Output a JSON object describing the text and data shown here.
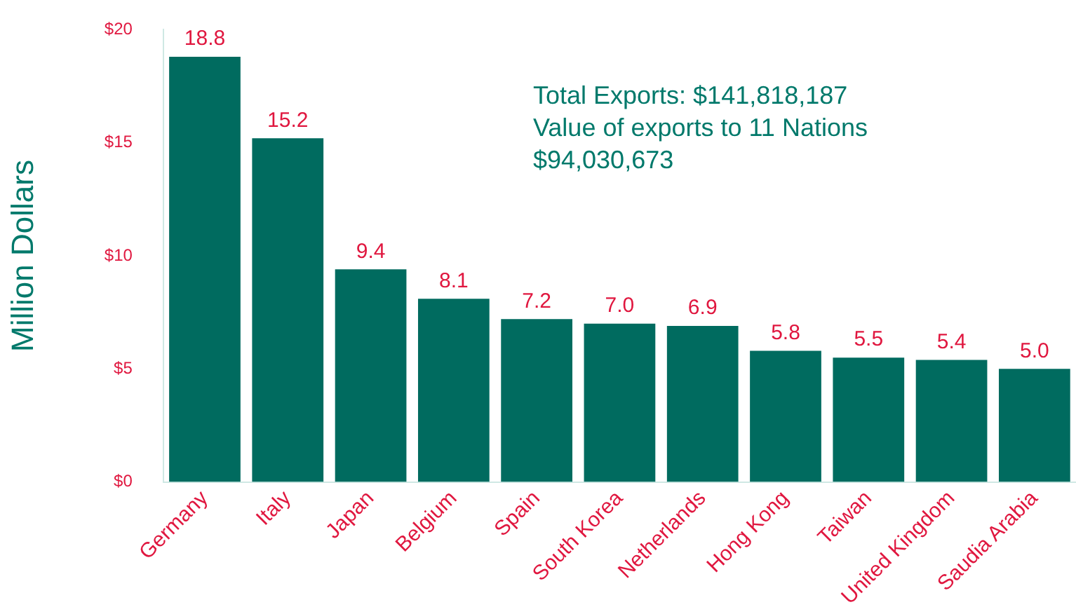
{
  "chart_data": {
    "type": "bar",
    "ylabel": "Million Dollars",
    "categories": [
      "Germany",
      "Italy",
      "Japan",
      "Belgium",
      "Spain",
      "South Korea",
      "Netherlands",
      "Hong Kong",
      "Taiwan",
      "United Kingdom",
      "Saudia Arabia"
    ],
    "values": [
      18.8,
      15.2,
      9.4,
      8.1,
      7.2,
      7.0,
      6.9,
      5.8,
      5.5,
      5.4,
      5.0
    ],
    "value_labels": [
      "18.8",
      "15.2",
      "9.4",
      "8.1",
      "7.2",
      "7.0",
      "6.9",
      "5.8",
      "5.5",
      "5.4",
      "5.0"
    ],
    "color": "#006b5f",
    "ylim": [
      0,
      20
    ],
    "yticks": [
      {
        "value": 0,
        "label": "$0"
      },
      {
        "value": 5,
        "label": "$5"
      },
      {
        "value": 10,
        "label": "$10"
      },
      {
        "value": 15,
        "label": "$15"
      },
      {
        "value": 20,
        "label": "$20"
      }
    ],
    "annotations": [
      "Total Exports: $141,818,187",
      "Value of exports to 11 Nations",
      "$94,030,673"
    ],
    "grid": false,
    "legend": false
  }
}
